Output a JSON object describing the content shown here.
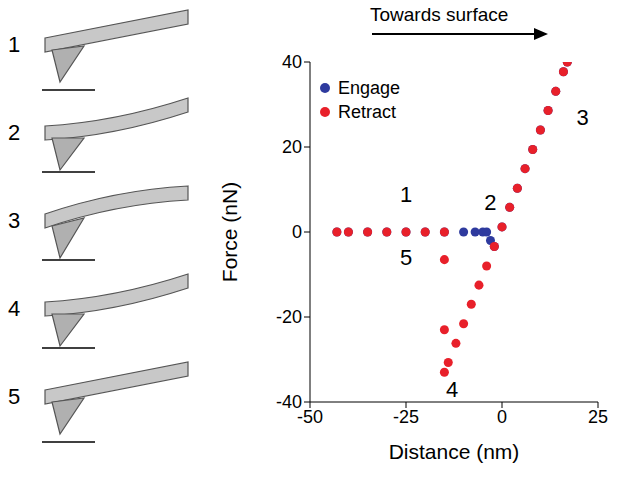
{
  "chart_data": {
    "type": "scatter",
    "x_label": "Distance (nm)",
    "y_label": "Force (nN)",
    "xlim": [
      -50,
      25
    ],
    "xticks": [
      -50,
      -25,
      0,
      25
    ],
    "ylim": [
      -40,
      40
    ],
    "yticks": [
      -40,
      -20,
      0,
      20,
      40
    ],
    "grid": false,
    "legend": "upper left",
    "series": [
      {
        "name": "Engage",
        "color": "#2e3a9e",
        "marker": "circle",
        "x": [
          -43,
          -40,
          -35,
          -30,
          -25,
          -20,
          -15,
          -10,
          -7,
          -5,
          -4,
          -3,
          -2,
          0,
          2,
          4,
          6,
          8,
          10,
          12,
          14,
          16,
          17
        ],
        "values": [
          0,
          0,
          0,
          0,
          0,
          0,
          0,
          0,
          0,
          0,
          0,
          -2,
          -3.4,
          1.2,
          5.8,
          10.3,
          14.9,
          19.4,
          24,
          28.6,
          33.1,
          37.7,
          40
        ]
      },
      {
        "name": "Retract",
        "color": "#e8202a",
        "marker": "circle",
        "x": [
          17,
          16,
          14,
          12,
          10,
          8,
          6,
          4,
          2,
          0,
          -2,
          -4,
          -6,
          -8,
          -10,
          -12,
          -14,
          -15,
          -15,
          -15,
          -15,
          -20,
          -25,
          -30,
          -35,
          -40,
          -43
        ],
        "values": [
          40,
          37.7,
          33.1,
          28.6,
          24,
          19.4,
          14.9,
          10.3,
          5.8,
          1.2,
          -3.4,
          -8,
          -12.5,
          -17,
          -21.6,
          -26.2,
          -30.7,
          -33,
          -23,
          -6.5,
          0,
          0,
          0,
          0,
          0,
          0,
          0
        ]
      }
    ],
    "annotations": [
      {
        "text": "Towards surface",
        "arrow": "right"
      },
      {
        "text": "1",
        "x": -25,
        "y": 9
      },
      {
        "text": "2",
        "x": -3,
        "y": 7
      },
      {
        "text": "3",
        "x": 21,
        "y": 27
      },
      {
        "text": "4",
        "x": -13,
        "y": -37
      },
      {
        "text": "5",
        "x": -25,
        "y": -6
      }
    ]
  },
  "diagram": {
    "panels": [
      "1",
      "2",
      "3",
      "4",
      "5"
    ]
  }
}
